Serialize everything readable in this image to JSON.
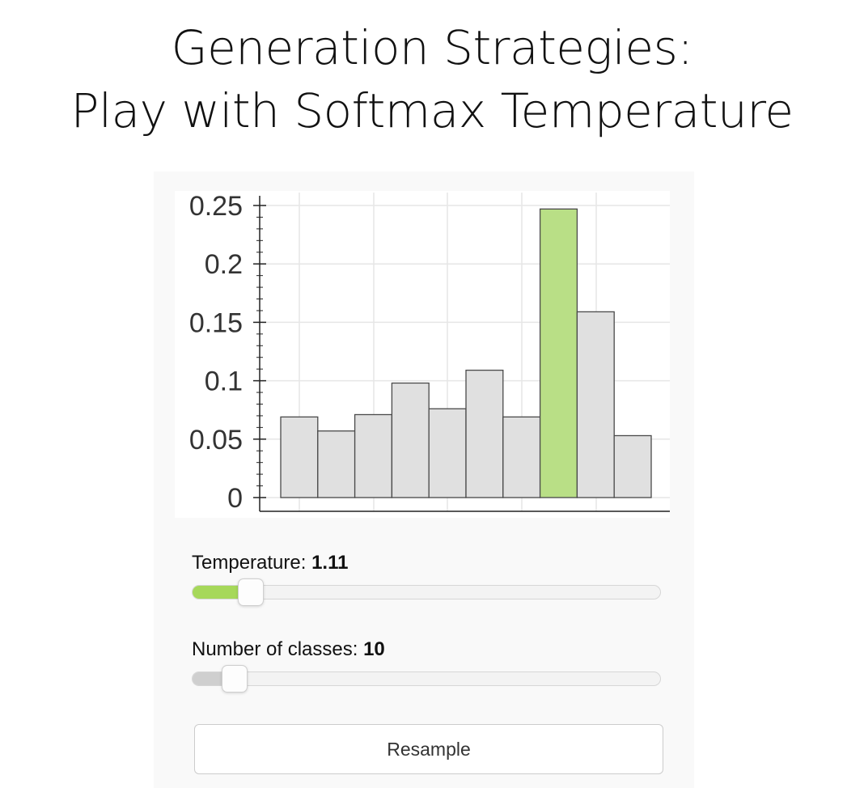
{
  "title": {
    "line1": "Generation Strategies:",
    "line2": "Play with Softmax Temperature"
  },
  "colors": {
    "highlight_bar": "#b9df86",
    "bar": "#e0e0e0",
    "slider_temperature_fill": "#a6d85a",
    "slider_classes_fill": "#cfcfcf"
  },
  "chart_data": {
    "type": "bar",
    "values": [
      0.069,
      0.057,
      0.071,
      0.098,
      0.076,
      0.109,
      0.069,
      0.247,
      0.159,
      0.053
    ],
    "highlight_index": 7,
    "ylim": [
      0,
      0.25
    ],
    "yticks": [
      "0",
      "0.05",
      "0.1",
      "0.15",
      "0.2",
      "0.25"
    ],
    "ytick_values": [
      0,
      0.05,
      0.1,
      0.15,
      0.2,
      0.25
    ],
    "grid": true
  },
  "controls": {
    "temperature": {
      "label": "Temperature:",
      "value": "1.11",
      "fraction": 0.11
    },
    "classes": {
      "label": "Number of classes:",
      "value": "10",
      "fraction": 0.075
    },
    "resample_label": "Resample"
  }
}
